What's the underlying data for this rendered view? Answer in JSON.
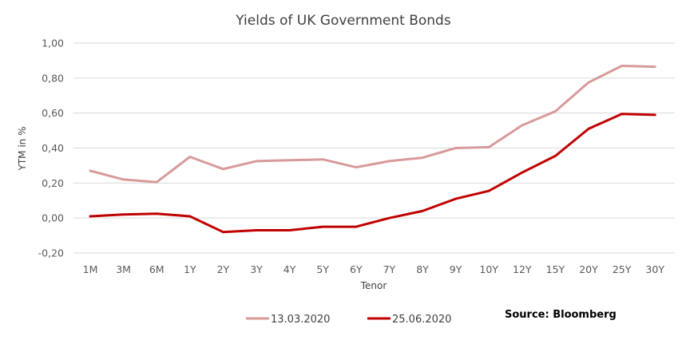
{
  "chart_data": {
    "type": "line",
    "title": "Yields of UK Government Bonds",
    "xlabel": "Tenor",
    "ylabel": "YTM in %",
    "categories": [
      "1M",
      "3M",
      "6M",
      "1Y",
      "2Y",
      "3Y",
      "4Y",
      "5Y",
      "6Y",
      "7Y",
      "8Y",
      "9Y",
      "10Y",
      "12Y",
      "15Y",
      "20Y",
      "25Y",
      "30Y"
    ],
    "ylim": [
      -0.2,
      1.0
    ],
    "yticks": [
      "-0,20",
      "0,00",
      "0,20",
      "0,40",
      "0,60",
      "0,80",
      "1,00"
    ],
    "ytick_values": [
      -0.2,
      0.0,
      0.2,
      0.4,
      0.6,
      0.8,
      1.0
    ],
    "grid": true,
    "legend_position": "bottom",
    "series": [
      {
        "name": "13.03.2020",
        "color": "#d89a9a",
        "values": [
          0.27,
          0.22,
          0.205,
          0.35,
          0.28,
          0.325,
          0.33,
          0.335,
          0.29,
          0.325,
          0.345,
          0.4,
          0.405,
          0.53,
          0.61,
          0.775,
          0.87,
          0.865
        ]
      },
      {
        "name": "25.06.2020",
        "color": "#c00000",
        "values": [
          0.01,
          0.02,
          0.025,
          0.01,
          -0.08,
          -0.07,
          -0.07,
          -0.05,
          -0.05,
          0.0,
          0.04,
          0.11,
          0.155,
          0.26,
          0.355,
          0.51,
          0.595,
          0.59
        ]
      }
    ],
    "annotations": [
      "Source: Bloomberg"
    ]
  }
}
